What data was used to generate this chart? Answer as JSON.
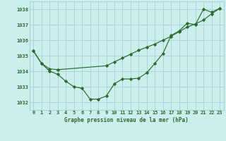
{
  "title": "Graphe pression niveau de la mer (hPa)",
  "bg_color": "#cceeed",
  "grid_color": "#aad4d4",
  "line_color": "#2d6a2d",
  "marker_color": "#2d6a2d",
  "xlim": [
    -0.5,
    23.5
  ],
  "ylim": [
    1031.5,
    1038.5
  ],
  "yticks": [
    1032,
    1033,
    1034,
    1035,
    1036,
    1037,
    1038
  ],
  "xticks": [
    0,
    1,
    2,
    3,
    4,
    5,
    6,
    7,
    8,
    9,
    10,
    11,
    12,
    13,
    14,
    15,
    16,
    17,
    18,
    19,
    20,
    21,
    22,
    23
  ],
  "series1_x": [
    0,
    1,
    2,
    3,
    4,
    5,
    6,
    7,
    8,
    9,
    10,
    11,
    12,
    13,
    14,
    15,
    16,
    17,
    18,
    19,
    20,
    21,
    22,
    23
  ],
  "series1_y": [
    1035.3,
    1034.5,
    1034.0,
    1033.8,
    1033.35,
    1033.0,
    1032.9,
    1032.2,
    1032.2,
    1032.4,
    1033.2,
    1033.5,
    1033.5,
    1033.55,
    1033.9,
    1034.5,
    1035.15,
    1036.3,
    1036.6,
    1037.1,
    1037.0,
    1038.0,
    1037.8,
    1038.05
  ],
  "series2_x": [
    0,
    1,
    2,
    3,
    9,
    10,
    11,
    12,
    13,
    14,
    15,
    16,
    17,
    18,
    19,
    20,
    21,
    22,
    23
  ],
  "series2_y": [
    1035.3,
    1034.5,
    1034.15,
    1034.1,
    1034.35,
    1034.6,
    1034.85,
    1035.1,
    1035.35,
    1035.55,
    1035.75,
    1036.0,
    1036.25,
    1036.55,
    1036.85,
    1037.05,
    1037.3,
    1037.7,
    1038.05
  ]
}
